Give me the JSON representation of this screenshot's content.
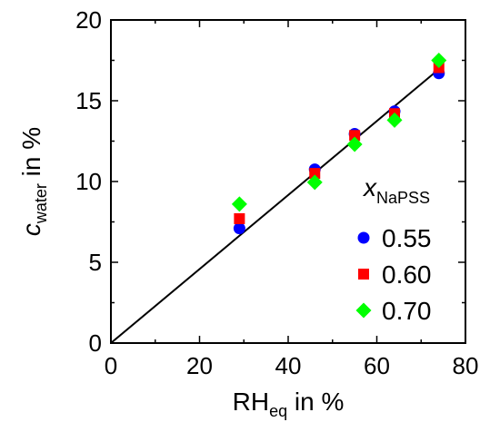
{
  "chart_data": {
    "type": "scatter",
    "xlabel": {
      "main": "RH",
      "sub": "eq",
      "suffix": " in %"
    },
    "ylabel": {
      "main": "c",
      "sub": "water",
      "suffix": " in %"
    },
    "xlim": [
      0,
      80
    ],
    "ylim": [
      0,
      20
    ],
    "xticks": [
      0,
      20,
      40,
      60,
      80
    ],
    "yticks": [
      0,
      5,
      10,
      15,
      20
    ],
    "grid": false,
    "legend": {
      "title": {
        "main": "x",
        "sub": "NaPSS"
      },
      "placement": "bottom-right"
    },
    "fit_line": {
      "x": [
        0,
        74
      ],
      "y": [
        0,
        16.95
      ]
    },
    "series": [
      {
        "name": "0.55",
        "marker": "circle",
        "color": "#0000ff",
        "x": [
          29,
          46,
          55,
          64,
          74
        ],
        "y": [
          7.1,
          10.75,
          12.95,
          14.35,
          16.7
        ]
      },
      {
        "name": "0.60",
        "marker": "square",
        "color": "#ff0000",
        "x": [
          29,
          46,
          55,
          64,
          74
        ],
        "y": [
          7.7,
          10.5,
          12.85,
          14.2,
          17.05
        ]
      },
      {
        "name": "0.70",
        "marker": "diamond",
        "color": "#00ff00",
        "x": [
          29,
          46,
          55,
          64,
          74
        ],
        "y": [
          8.6,
          9.95,
          12.3,
          13.8,
          17.5
        ]
      }
    ]
  }
}
